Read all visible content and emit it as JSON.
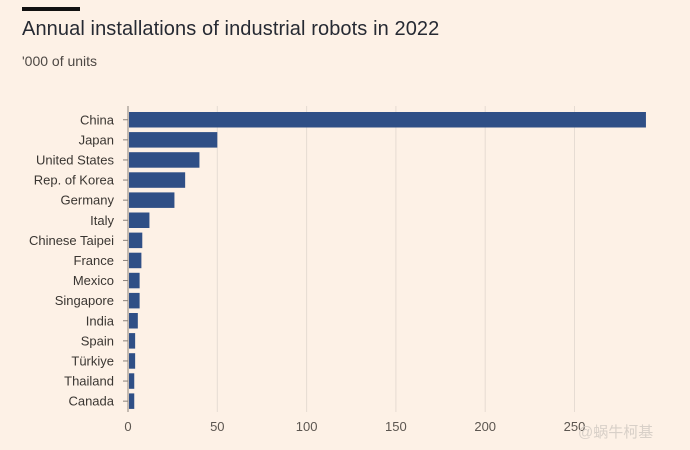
{
  "header": {
    "title": "Annual installations of industrial robots in 2022",
    "subtitle": "'000 of units"
  },
  "watermark": "@蜗牛柯基",
  "colors": {
    "bar": "#2f4f86",
    "background": "#fdf1e6",
    "gridline": "#e6dcd3",
    "axis_text": "#5c5650"
  },
  "chart_data": {
    "type": "bar",
    "orientation": "horizontal",
    "title": "Annual installations of industrial robots in 2022",
    "subtitle": "'000 of units",
    "categories": [
      "China",
      "Japan",
      "United States",
      "Rep. of Korea",
      "Germany",
      "Italy",
      "Chinese Taipei",
      "France",
      "Mexico",
      "Singapore",
      "India",
      "Spain",
      "Türkiye",
      "Thailand",
      "Canada"
    ],
    "values": [
      290,
      50,
      40,
      32,
      26,
      12,
      8,
      7.5,
      6.5,
      6.5,
      5.5,
      4,
      4,
      3.5,
      3.5
    ],
    "xticks": [
      0,
      50,
      100,
      150,
      200,
      250
    ],
    "xlim": [
      0,
      295
    ],
    "grid": true,
    "legend": "none"
  }
}
